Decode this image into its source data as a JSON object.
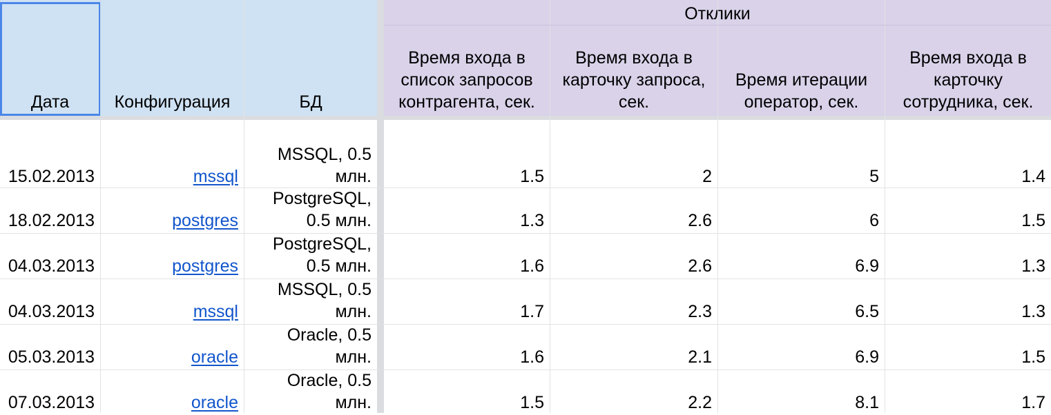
{
  "header": {
    "group_title": "Отклики",
    "columns": {
      "date": "Дата",
      "config": "Конфигурация",
      "db": "БД",
      "t_list": "Время входа в список запросов контрагента, сек.",
      "t_card": "Время входа в карточку запроса, сек.",
      "t_iter": "Время итерации оператор, сек.",
      "t_emp": "Время входа в карточку сотрудника, сек."
    }
  },
  "rows": [
    {
      "date": "15.02.2013",
      "config": "mssql",
      "db": "MSSQL, 0.5 млн.",
      "t_list": "1.5",
      "t_card": "2",
      "t_iter": "5",
      "t_emp": "1.4"
    },
    {
      "date": "18.02.2013",
      "config": "postgres",
      "db": "PostgreSQL, 0.5 млн.",
      "t_list": "1.3",
      "t_card": "2.6",
      "t_iter": "6",
      "t_emp": "1.5"
    },
    {
      "date": "04.03.2013",
      "config": "postgres",
      "db": "PostgreSQL, 0.5 млн.",
      "t_list": "1.6",
      "t_card": "2.6",
      "t_iter": "6.9",
      "t_emp": "1.3"
    },
    {
      "date": "04.03.2013",
      "config": "mssql",
      "db": "MSSQL, 0.5 млн.",
      "t_list": "1.7",
      "t_card": "2.3",
      "t_iter": "6.5",
      "t_emp": "1.3"
    },
    {
      "date": "05.03.2013",
      "config": "oracle",
      "db": "Oracle, 0.5 млн.",
      "t_list": "1.6",
      "t_card": "2.1",
      "t_iter": "6.9",
      "t_emp": "1.5"
    },
    {
      "date": "07.03.2013",
      "config": "oracle",
      "db": "Oracle, 0.5 млн.",
      "t_list": "1.5",
      "t_card": "2.2",
      "t_iter": "8.1",
      "t_emp": "1.7"
    }
  ],
  "colors": {
    "header_blue": "#cfe2f3",
    "header_purple": "#d9d2e9",
    "link": "#1155cc",
    "selection": "#4a86e8"
  }
}
